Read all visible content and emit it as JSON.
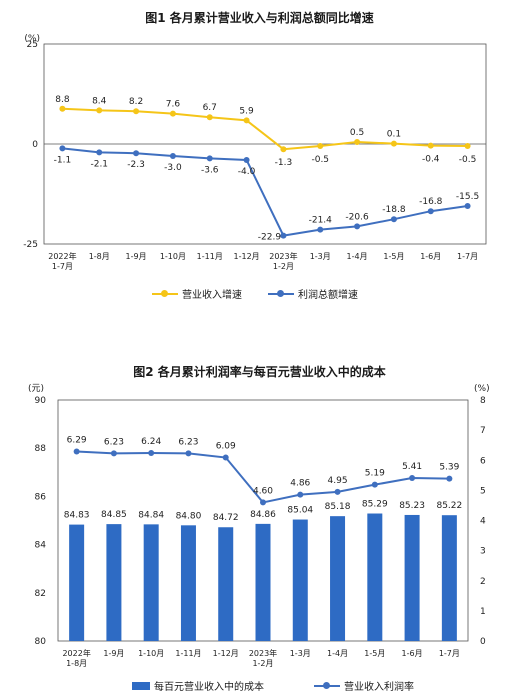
{
  "colors": {
    "revenue_growth": "#f5c518",
    "profit_growth": "#3f6fbf",
    "cost_bar": "#2e6bc4",
    "margin_line": "#3f6fbf",
    "axis": "#555555"
  },
  "chart_data": [
    {
      "type": "line",
      "title": "图1  各月累计营业收入与利润总额同比增速",
      "unit_label": "(%)",
      "categories": [
        "2022年\n1-7月",
        "1-8月",
        "1-9月",
        "1-10月",
        "1-11月",
        "1-12月",
        "2023年\n1-2月",
        "1-3月",
        "1-4月",
        "1-5月",
        "1-6月",
        "1-7月"
      ],
      "ylim": [
        -25,
        25
      ],
      "y_ticks": [
        "25",
        "0",
        "-25"
      ],
      "series": [
        {
          "name": "营业收入增速",
          "values": [
            8.8,
            8.4,
            8.2,
            7.6,
            6.7,
            5.9,
            -1.3,
            -0.5,
            0.5,
            0.1,
            -0.4,
            -0.5
          ],
          "labels": [
            "8.8",
            "8.4",
            "8.2",
            "7.6",
            "6.7",
            "5.9",
            "-1.3",
            "-0.5",
            "0.5",
            "0.1",
            "-0.4",
            "-0.5"
          ]
        },
        {
          "name": "利润总额增速",
          "values": [
            -1.1,
            -2.1,
            -2.3,
            -3.0,
            -3.6,
            -4.0,
            -22.9,
            -21.4,
            -20.6,
            -18.8,
            -16.8,
            -15.5
          ],
          "labels": [
            "-1.1",
            "-2.1",
            "-2.3",
            "-3.0",
            "-3.6",
            "-4.0",
            "-22.9",
            "-21.4",
            "-20.6",
            "-18.8",
            "-16.8",
            "-15.5"
          ]
        }
      ],
      "legend_position": "bottom",
      "grid": false
    },
    {
      "type": "bar",
      "title": "图2  各月累计利润率与每百元营业收入中的成本",
      "left_unit_label": "(元)",
      "right_unit_label": "(%)",
      "categories": [
        "2022年\n1-8月",
        "1-9月",
        "1-10月",
        "1-11月",
        "1-12月",
        "2023年\n1-2月",
        "1-3月",
        "1-4月",
        "1-5月",
        "1-6月",
        "1-7月"
      ],
      "ylim_left": [
        80,
        90
      ],
      "left_ticks": [
        "80",
        "82",
        "84",
        "86",
        "88",
        "90"
      ],
      "ylim_right": [
        0,
        8
      ],
      "right_ticks": [
        "0",
        "1",
        "2",
        "3",
        "4",
        "5",
        "6",
        "7",
        "8"
      ],
      "series": [
        {
          "name": "每百元营业收入中的成本",
          "type": "bar",
          "axis": "left",
          "values": [
            84.83,
            84.85,
            84.84,
            84.8,
            84.72,
            84.86,
            85.04,
            85.18,
            85.29,
            85.23,
            85.22
          ],
          "labels": [
            "84.83",
            "84.85",
            "84.84",
            "84.80",
            "84.72",
            "84.86",
            "85.04",
            "85.18",
            "85.29",
            "85.23",
            "85.22"
          ]
        },
        {
          "name": "营业收入利润率",
          "type": "line",
          "axis": "right",
          "values": [
            6.29,
            6.23,
            6.24,
            6.23,
            6.09,
            4.6,
            4.86,
            4.95,
            5.19,
            5.41,
            5.39
          ],
          "labels": [
            "6.29",
            "6.23",
            "6.24",
            "6.23",
            "6.09",
            "4.60",
            "4.86",
            "4.95",
            "5.19",
            "5.41",
            "5.39"
          ]
        }
      ],
      "legend_position": "bottom",
      "grid": false
    }
  ]
}
